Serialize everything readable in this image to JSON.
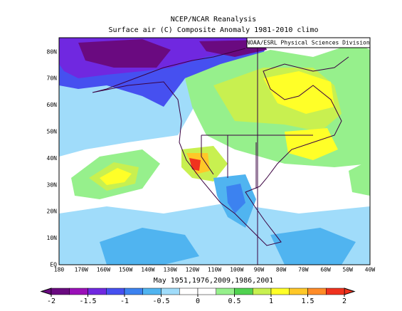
{
  "title": "NCEP/NCAR Reanalysis",
  "subtitle": "Surface air (C) Composite Anomaly 1981-2010 climo",
  "credit": "NOAA/ESRL Physical Sciences Division",
  "lat_labels": [
    "EQ",
    "10N",
    "20N",
    "30N",
    "40N",
    "50N",
    "60N",
    "70N",
    "80N"
  ],
  "lon_labels": [
    "180",
    "170W",
    "160W",
    "150W",
    "140W",
    "130W",
    "120W",
    "110W",
    "100W",
    "90W",
    "80W",
    "70W",
    "60W",
    "50W",
    "40W"
  ],
  "caption": "May 1951,1976,2009,1986,2001",
  "colorbar": {
    "ticks": [
      -2,
      -1.5,
      -1,
      -0.5,
      0,
      0.5,
      1,
      1.5,
      2
    ],
    "colors": [
      "#6a0a80",
      "#9a10b8",
      "#7028e0",
      "#4650f0",
      "#3c82f0",
      "#50b4f0",
      "#a0dcfa",
      "#ffffff",
      "#ffffff",
      "#96f08c",
      "#50d250",
      "#c8f050",
      "#ffff28",
      "#ffc828",
      "#ff8c28",
      "#f0321e"
    ]
  }
}
